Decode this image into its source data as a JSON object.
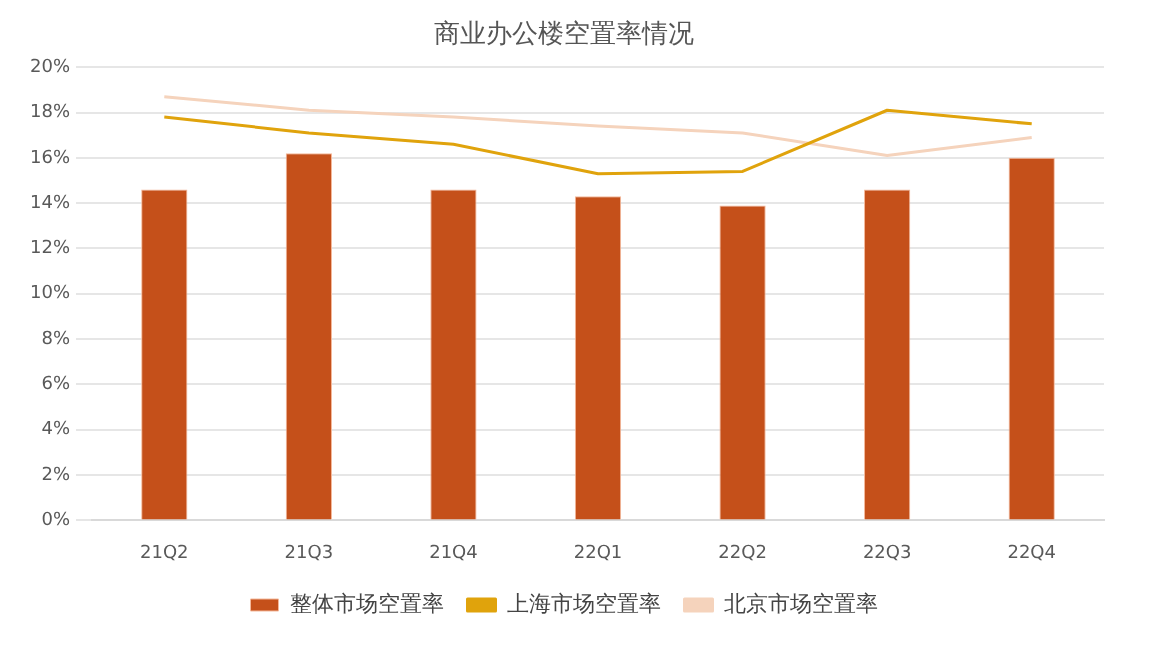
{
  "chart_data": {
    "type": "bar",
    "title": "商业办公楼空置率情况",
    "categories": [
      "21Q2",
      "21Q3",
      "21Q4",
      "22Q1",
      "22Q2",
      "22Q3",
      "22Q4"
    ],
    "series": [
      {
        "name": "整体市场空置率",
        "color": "#c5501a",
        "values": [
          14.6,
          16.2,
          14.6,
          14.3,
          13.9,
          14.6,
          16.0
        ]
      },
      {
        "name": "上海市场空置率",
        "type": "line",
        "color": "#e0a30c",
        "values": [
          17.8,
          17.1,
          16.6,
          15.3,
          15.4,
          18.1,
          17.5
        ]
      },
      {
        "name": "北京市场空置率",
        "type": "line",
        "color": "#f5d3bc",
        "values": [
          18.7,
          18.1,
          17.8,
          17.4,
          17.1,
          16.1,
          16.9
        ]
      }
    ],
    "ylim": [
      0,
      20
    ],
    "yticks": [
      {
        "value": 0,
        "label": "0%"
      },
      {
        "value": 2,
        "label": "2%"
      },
      {
        "value": 4,
        "label": "4%"
      },
      {
        "value": 6,
        "label": "6%"
      },
      {
        "value": 8,
        "label": "8%"
      },
      {
        "value": 10,
        "label": "10%"
      },
      {
        "value": 12,
        "label": "12%"
      },
      {
        "value": 14,
        "label": "14%"
      },
      {
        "value": 16,
        "label": "16%"
      },
      {
        "value": 18,
        "label": "18%"
      },
      {
        "value": 20,
        "label": "20%"
      }
    ],
    "grid": "y",
    "legend": "bottom",
    "marker": "none"
  }
}
